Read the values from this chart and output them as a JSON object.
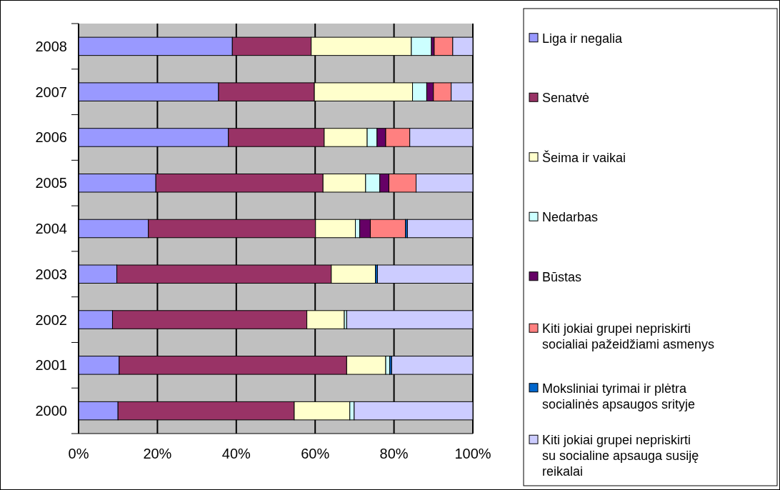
{
  "chart_data": {
    "type": "bar",
    "orientation": "horizontal",
    "stacked": true,
    "categories": [
      "2008",
      "2007",
      "2006",
      "2005",
      "2004",
      "2003",
      "2002",
      "2001",
      "2000"
    ],
    "series": [
      {
        "name": "Liga ir negalia",
        "color": "#9999ff",
        "values": [
          39.0,
          35.5,
          38.0,
          19.6,
          17.7,
          9.7,
          8.6,
          10.3,
          10.0
        ]
      },
      {
        "name": "Senatvė",
        "color": "#993366",
        "values": [
          20.0,
          24.3,
          24.3,
          42.4,
          42.4,
          54.4,
          49.3,
          57.7,
          44.7
        ]
      },
      {
        "name": "Šeima ir vaikai",
        "color": "#ffffcc",
        "values": [
          25.4,
          24.9,
          10.9,
          10.8,
          10.1,
          11.2,
          9.5,
          9.9,
          14.1
        ]
      },
      {
        "name": "Nedarbas",
        "color": "#ccffff",
        "values": [
          5.1,
          3.6,
          2.5,
          3.6,
          1.1,
          null,
          0.6,
          1.0,
          1.1
        ]
      },
      {
        "name": "Būstas",
        "color": "#660066",
        "values": [
          0.7,
          1.7,
          2.2,
          2.3,
          2.7,
          null,
          null,
          null,
          null
        ]
      },
      {
        "name": "Kiti jokiai grupei nepriskirti socialiai pažeidžiami asmenys",
        "color": "#ff8080",
        "values": [
          4.7,
          4.5,
          6.1,
          6.9,
          8.9,
          null,
          null,
          null,
          null
        ]
      },
      {
        "name": "Moksliniai tyrimai ir plėtra socialinės apsaugos srityje",
        "color": "#0066cc",
        "values": [
          null,
          null,
          null,
          null,
          0.5,
          0.5,
          null,
          0.5,
          null
        ]
      },
      {
        "name": "Kiti jokiai grupei nepriskirti su socialine apsauga susiję reikalai",
        "color": "#ccccff",
        "values": [
          5.1,
          5.5,
          16.0,
          14.4,
          16.6,
          24.2,
          32.0,
          20.6,
          30.1
        ]
      }
    ],
    "xlim": [
      0,
      100
    ],
    "xticks": [
      {
        "value": 0,
        "label": "0%"
      },
      {
        "value": 20,
        "label": "20%"
      },
      {
        "value": 40,
        "label": "40%"
      },
      {
        "value": 60,
        "label": "60%"
      },
      {
        "value": 80,
        "label": "80%"
      },
      {
        "value": 100,
        "label": "100%"
      }
    ],
    "grid": "x",
    "legend": "right"
  }
}
